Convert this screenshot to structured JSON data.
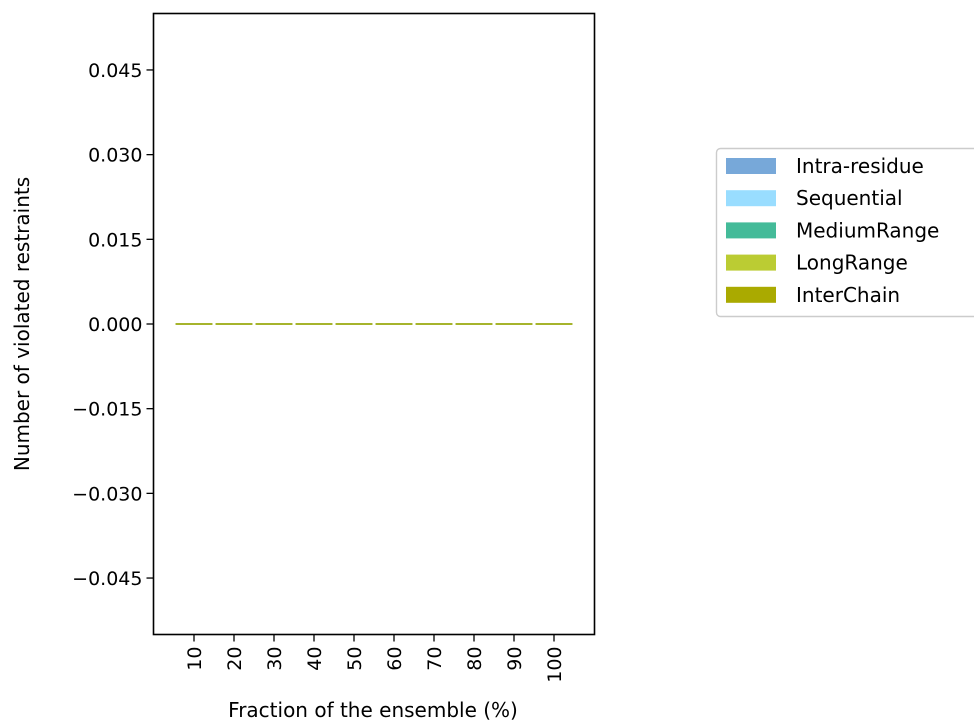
{
  "chart_data": {
    "type": "bar",
    "stacked": true,
    "categories": [
      "10",
      "20",
      "30",
      "40",
      "50",
      "60",
      "70",
      "80",
      "90",
      "100"
    ],
    "series": [
      {
        "name": "Intra-residue",
        "color": "#77a8d9",
        "values": [
          0,
          0,
          0,
          0,
          0,
          0,
          0,
          0,
          0,
          0
        ]
      },
      {
        "name": "Sequential",
        "color": "#99ddff",
        "values": [
          0,
          0,
          0,
          0,
          0,
          0,
          0,
          0,
          0,
          0
        ]
      },
      {
        "name": "MediumRange",
        "color": "#44bb99",
        "values": [
          0,
          0,
          0,
          0,
          0,
          0,
          0,
          0,
          0,
          0
        ]
      },
      {
        "name": "LongRange",
        "color": "#bbcc33",
        "values": [
          0,
          0,
          0,
          0,
          0,
          0,
          0,
          0,
          0,
          0
        ]
      },
      {
        "name": "InterChain",
        "color": "#aaaa00",
        "values": [
          0,
          0,
          0,
          0,
          0,
          0,
          0,
          0,
          0,
          0
        ]
      }
    ],
    "title": "",
    "xlabel": "Fraction of the ensemble (%)",
    "ylabel": "Number of violated restraints",
    "ylim": [
      -0.055,
      0.055
    ],
    "yticks": [
      -0.045,
      -0.03,
      -0.015,
      0.0,
      0.015,
      0.03,
      0.045
    ],
    "ytick_labels": [
      "−0.045",
      "−0.030",
      "−0.015",
      "0.000",
      "0.015",
      "0.030",
      "0.045"
    ],
    "grid": false,
    "legend_position": "right, outside plot"
  }
}
